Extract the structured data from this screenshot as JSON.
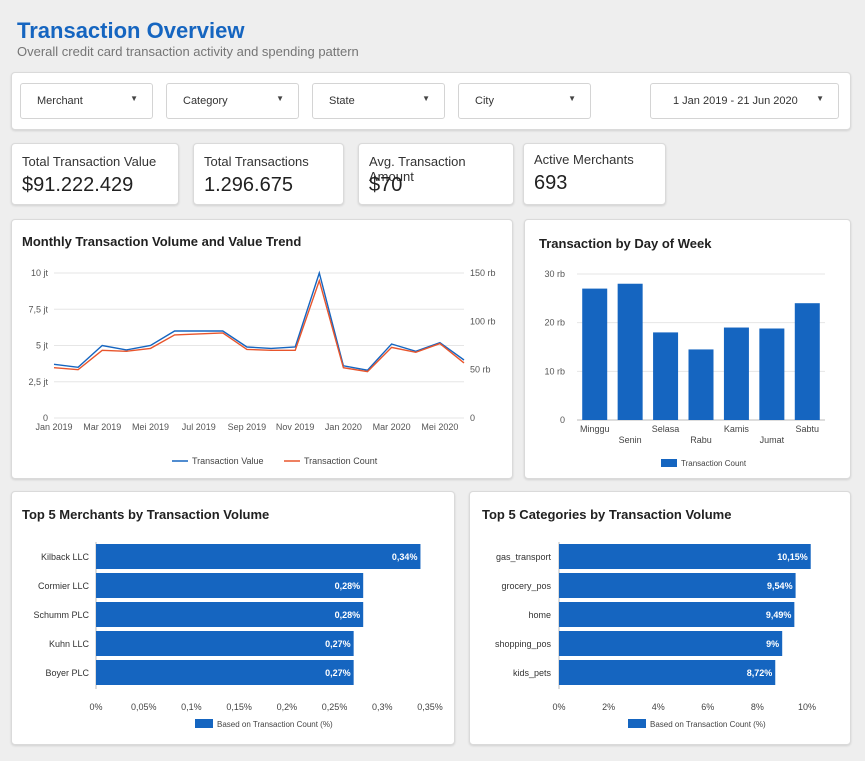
{
  "header": {
    "title": "Transaction Overview",
    "subtitle": "Overall credit card transaction activity and spending pattern"
  },
  "filters": {
    "merchant": "Merchant",
    "category": "Category",
    "state": "State",
    "city": "City",
    "date_range": "1 Jan 2019 - 21 Jun 2020"
  },
  "kpis": [
    {
      "label": "Total Transaction Value",
      "value": "$91.222.429"
    },
    {
      "label": "Total Transactions",
      "value": "1.296.675"
    },
    {
      "label": "Avg. Transaction Amount",
      "value": "$70"
    },
    {
      "label": "Active Merchants",
      "value": "693"
    }
  ],
  "colors": {
    "title_blue": "#1565c0",
    "bar_blue": "#1565c0",
    "value_line": "#1565c0",
    "count_line": "#e8552c"
  },
  "chart_data": [
    {
      "type": "line",
      "title": "Monthly Transaction Volume and Value Trend",
      "x": [
        "Jan 2019",
        "Feb 2019",
        "Mar 2019",
        "Apr 2019",
        "Mei 2019",
        "Jun 2019",
        "Jul 2019",
        "Aug 2019",
        "Sep 2019",
        "Oct 2019",
        "Nov 2019",
        "Dec 2019",
        "Jan 2020",
        "Feb 2020",
        "Mar 2020",
        "Apr 2020",
        "Mei 2020",
        "Jun 2020"
      ],
      "x_tick_labels": [
        "Jan 2019",
        "Mar 2019",
        "Mei 2019",
        "Jul 2019",
        "Sep 2019",
        "Nov 2019",
        "Jan 2020",
        "Mar 2020",
        "Mei 2020"
      ],
      "y_left_ticks": [
        "0",
        "2,5 jt",
        "5 jt",
        "7,5 jt",
        "10 jt"
      ],
      "y_left_range": [
        0,
        10000000
      ],
      "y_right_ticks": [
        "0",
        "50 rb",
        "100 rb",
        "150 rb"
      ],
      "y_right_range": [
        0,
        150000
      ],
      "series": [
        {
          "name": "Transaction Value",
          "axis": "left",
          "values": [
            3700000,
            3500000,
            5000000,
            4700000,
            5000000,
            6000000,
            6000000,
            6000000,
            4900000,
            4800000,
            4900000,
            10000000,
            3600000,
            3300000,
            5100000,
            4600000,
            5200000,
            4000000
          ]
        },
        {
          "name": "Transaction Count",
          "axis": "right",
          "values": [
            52000,
            50000,
            70000,
            69000,
            72000,
            86000,
            87000,
            88000,
            71000,
            70000,
            70000,
            142000,
            52000,
            48000,
            73000,
            68000,
            77000,
            57000
          ]
        }
      ],
      "grid": true,
      "legend": "bottom"
    },
    {
      "type": "bar",
      "title": "Transaction by Day of Week",
      "categories": [
        "Minggu",
        "Senin",
        "Selasa",
        "Rabu",
        "Kamis",
        "Jumat",
        "Sabtu"
      ],
      "values": [
        27000,
        28000,
        18000,
        14500,
        19000,
        18800,
        24000
      ],
      "y_ticks": [
        "0",
        "10 rb",
        "20 rb",
        "30 rb"
      ],
      "ylim": [
        0,
        30000
      ],
      "series_name": "Transaction Count",
      "grid": true,
      "legend": "bottom"
    },
    {
      "type": "bar",
      "orientation": "horizontal",
      "title": "Top 5 Merchants by Transaction Volume",
      "categories": [
        "Kilback LLC",
        "Cormier LLC",
        "Schumm PLC",
        "Kuhn LLC",
        "Boyer PLC"
      ],
      "values": [
        0.34,
        0.28,
        0.28,
        0.27,
        0.27
      ],
      "data_labels": [
        "0,34%",
        "0,28%",
        "0,28%",
        "0,27%",
        "0,27%"
      ],
      "x_ticks": [
        "0%",
        "0,05%",
        "0,1%",
        "0,15%",
        "0,2%",
        "0,25%",
        "0,3%",
        "0,35%"
      ],
      "xlim": [
        0,
        0.35
      ],
      "series_name": "Based on Transaction Count (%)",
      "legend": "bottom"
    },
    {
      "type": "bar",
      "orientation": "horizontal",
      "title": "Top 5 Categories by Transaction Volume",
      "categories": [
        "gas_transport",
        "grocery_pos",
        "home",
        "shopping_pos",
        "kids_pets"
      ],
      "values": [
        10.15,
        9.54,
        9.49,
        9,
        8.72
      ],
      "data_labels": [
        "10,15%",
        "9,54%",
        "9,49%",
        "9%",
        "8,72%"
      ],
      "x_ticks": [
        "0%",
        "2%",
        "4%",
        "6%",
        "8%",
        "10%"
      ],
      "xlim": [
        0,
        10
      ],
      "series_name": "Based on Transaction Count (%)",
      "legend": "bottom"
    }
  ]
}
